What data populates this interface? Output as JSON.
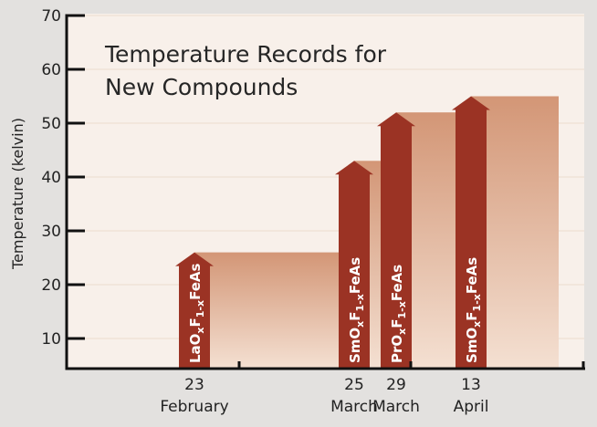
{
  "chart_data": {
    "type": "bar",
    "title": [
      "Temperature Records for",
      "New Compounds"
    ],
    "ylabel": "Temperature (kelvin)",
    "xlabel": "",
    "ylim": [
      4.4,
      70
    ],
    "yticks": [
      10,
      20,
      30,
      40,
      50,
      60,
      70
    ],
    "grid": true,
    "categories": [
      {
        "day": "23",
        "month": "February"
      },
      {
        "day": "25",
        "month": "March"
      },
      {
        "day": "29",
        "month": "March"
      },
      {
        "day": "13",
        "month": "April"
      }
    ],
    "series": [
      {
        "values": [
          26,
          43,
          52,
          55
        ],
        "compounds": [
          [
            "LaO",
            "x",
            "F",
            "1-x",
            "FeAs"
          ],
          [
            "SmO",
            "x",
            "F",
            "1-x",
            "FeAs"
          ],
          [
            "PrO",
            "x",
            "F",
            "1-x",
            "FeAs"
          ],
          [
            "SmO",
            "x",
            "F",
            "1-x",
            "FeAs"
          ]
        ]
      }
    ],
    "colors": {
      "arrow": "#9b3324",
      "shade_top": "#d39676",
      "shade_bottom": "#f4e0d2",
      "plot_bg": "#f8f0ea",
      "page_bg": "#e3e1df"
    }
  }
}
